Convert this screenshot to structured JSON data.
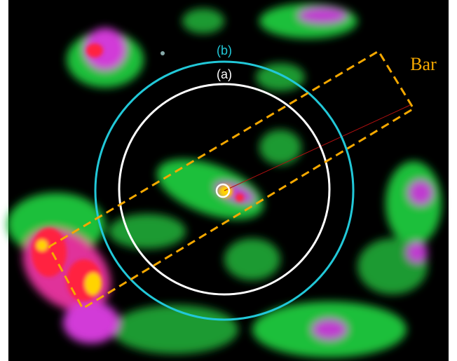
{
  "labels": {
    "b": "(b)",
    "a": "(a)",
    "bar": "Bar"
  }
}
